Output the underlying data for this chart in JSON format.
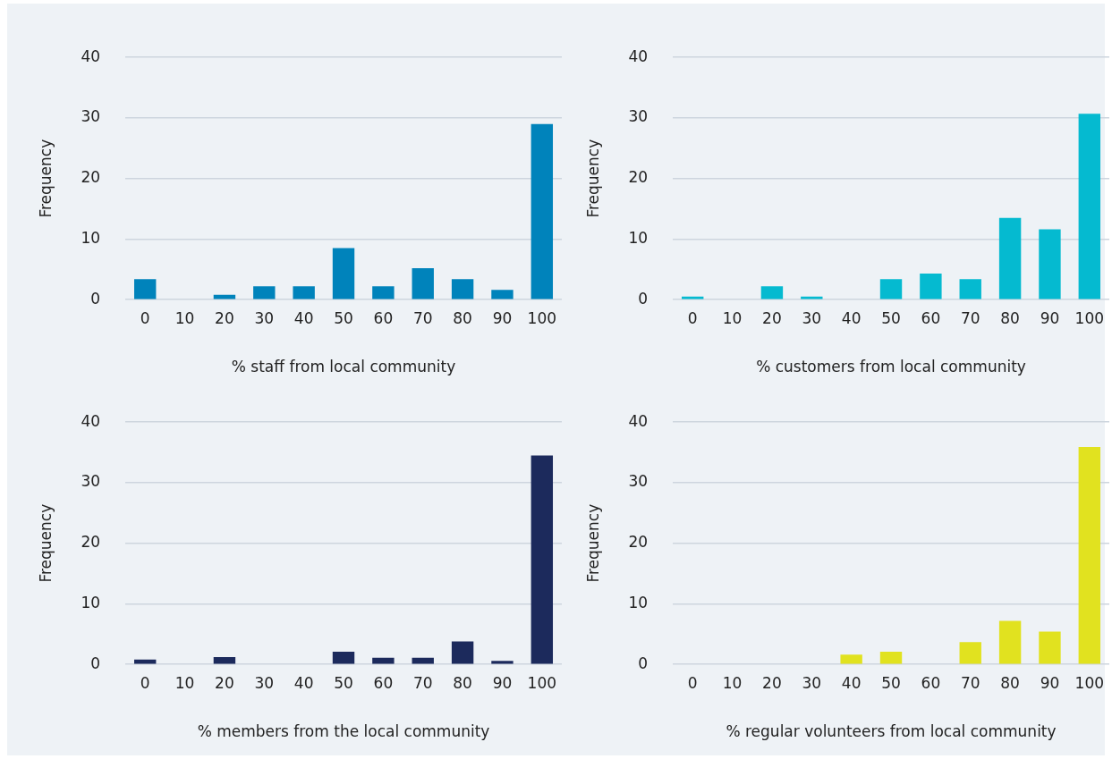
{
  "chart_data": [
    {
      "type": "bar",
      "categories": [
        "0",
        "10",
        "20",
        "30",
        "40",
        "50",
        "60",
        "70",
        "80",
        "90",
        "100"
      ],
      "values": [
        3.4,
        0,
        0.8,
        2.2,
        2.2,
        8.5,
        2.2,
        5.2,
        3.4,
        1.6,
        29.0
      ],
      "color": "#0083bb",
      "xlabel": "% staff from local community",
      "ylabel": "Frequency",
      "ylim": [
        0,
        40
      ],
      "yticks": [
        0,
        10,
        20,
        30,
        40
      ],
      "grid": "y"
    },
    {
      "type": "bar",
      "categories": [
        "0",
        "10",
        "20",
        "30",
        "40",
        "50",
        "60",
        "70",
        "80",
        "90",
        "100"
      ],
      "values": [
        0.5,
        0,
        2.2,
        0.5,
        0,
        3.4,
        4.3,
        3.4,
        13.5,
        11.6,
        30.7
      ],
      "color": "#05bad0",
      "xlabel": "% customers from local community",
      "ylabel": "Frequency",
      "ylim": [
        0,
        40
      ],
      "yticks": [
        0,
        10,
        20,
        30,
        40
      ],
      "grid": "y"
    },
    {
      "type": "bar",
      "categories": [
        "0",
        "10",
        "20",
        "30",
        "40",
        "50",
        "60",
        "70",
        "80",
        "90",
        "100"
      ],
      "values": [
        0.8,
        0,
        1.2,
        0,
        0,
        2.1,
        1.1,
        1.1,
        3.8,
        0.6,
        34.5
      ],
      "color": "#1c2a5c",
      "xlabel": "% members from the local community",
      "ylabel": "Frequency",
      "ylim": [
        0,
        40
      ],
      "yticks": [
        0,
        10,
        20,
        30,
        40
      ],
      "grid": "y"
    },
    {
      "type": "bar",
      "categories": [
        "0",
        "10",
        "20",
        "30",
        "40",
        "50",
        "60",
        "70",
        "80",
        "90",
        "100"
      ],
      "values": [
        0,
        0,
        0,
        0,
        1.6,
        2.1,
        0,
        3.7,
        7.2,
        5.4,
        35.9
      ],
      "color": "#e1e21f",
      "xlabel": "% regular volunteers from local community",
      "ylabel": "Frequency",
      "ylim": [
        0,
        40
      ],
      "yticks": [
        0,
        10,
        20,
        30,
        40
      ],
      "grid": "y"
    }
  ]
}
